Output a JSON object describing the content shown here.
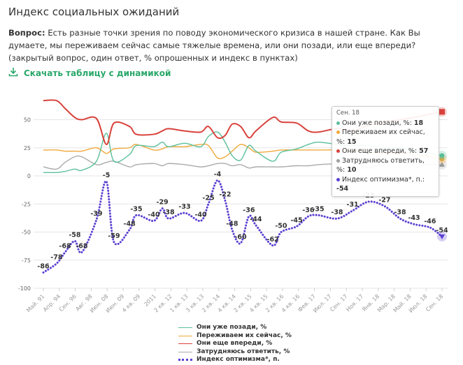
{
  "title": "Индекс социальных ожиданий",
  "question": {
    "label": "Вопрос:",
    "text": " Есть разные точки зрения по поводу экономического кризиса в нашей стране. Как Вы думаете, мы переживаем сейчас самые тяжелые времена, или они позади, или еще впереди? (закрытый вопрос, один ответ, % опрошенных и индекс в пунктах)"
  },
  "download_label": "Скачать таблицу с динамикой",
  "colors": {
    "accent": "#2aa86a"
  },
  "tooltip": {
    "header": "Сен. 18",
    "rows": [
      {
        "label": "Они уже позади, %: ",
        "value": "18",
        "color": "#5bbf9a"
      },
      {
        "label": "Переживаем их сейчас, %: ",
        "value": "15",
        "color": "#f0a93c"
      },
      {
        "label": "Они еще впереди, %: ",
        "value": "57",
        "color": "#d9423c"
      },
      {
        "label": "Затрудняюсь ответить, %: ",
        "value": "10",
        "color": "#9e9e9e"
      },
      {
        "label": "Индекс оптимизма*, п.: ",
        "value": "-54",
        "color": "#5b3fd1"
      }
    ]
  },
  "chart_data": {
    "type": "line",
    "categories": [
      "Май. 91",
      "Апр. 94",
      "Сен. 96",
      "Авг. 98",
      "Июн. 08",
      "Июн. 09",
      "4 кв. 09",
      "2011",
      "2 кв. 12",
      "1 кв. 13",
      "3 кв. 13",
      "2 кв. 14",
      "4 кв. 14",
      "2 кв. 15",
      "4 кв. 15",
      "2 кв. 16",
      "4 кв. 16",
      "Фев. 17",
      "Июл. 17",
      "Сен. 17",
      "Ноя. 17",
      "Янв. 18",
      "Мар. 18",
      "Май. 18",
      "Июл. 18",
      "Сен. 18"
    ],
    "yticks": [
      50,
      25,
      0,
      -25,
      -50,
      -75,
      -100
    ],
    "ylim": [
      -100,
      75
    ],
    "grid": true,
    "legend": "bottom",
    "x": [
      0,
      0.83,
      1.36,
      1.97,
      2.41,
      3.33,
      3.95,
      4.43,
      5.4,
      5.83,
      6.93,
      7.46,
      7.85,
      8.86,
      9.87,
      10.35,
      10.92,
      11.4,
      11.84,
      12.37,
      12.89,
      13.33,
      14.39,
      14.91,
      15.88,
      16.62,
      17.24,
      18.42,
      19.39,
      20.39,
      21.4,
      22.37,
      23.25,
      24.25,
      25
    ],
    "series": [
      {
        "name": "Они уже позади, %",
        "color": "#5bbf9a",
        "style": "solid",
        "values": [
          3,
          3,
          4,
          6,
          5,
          13,
          38,
          13,
          19,
          27,
          26,
          30,
          26,
          29,
          26,
          35,
          39,
          30,
          18,
          14,
          27,
          22,
          13,
          21,
          24,
          28,
          30,
          28,
          27,
          27,
          25,
          25,
          22,
          20,
          18
        ]
      },
      {
        "name": "Переживаем их сейчас, %",
        "color": "#f0a93c",
        "style": "solid",
        "values": [
          23,
          23,
          22,
          22,
          22,
          25,
          20,
          24,
          25,
          28,
          23,
          24,
          26,
          26,
          28,
          27,
          16,
          17,
          22,
          28,
          25,
          21,
          22,
          23,
          23,
          23,
          23,
          23,
          22,
          21,
          20,
          20,
          19,
          17,
          15
        ]
      },
      {
        "name": "Они еще впереди, %",
        "color": "#d9423c",
        "style": "solid",
        "values": [
          67,
          67,
          60,
          52,
          50,
          51,
          28,
          47,
          44,
          37,
          37,
          40,
          42,
          40,
          39,
          44,
          34,
          36,
          46,
          44,
          34,
          40,
          52,
          48,
          47,
          40,
          39,
          42,
          40,
          45,
          48,
          50,
          52,
          55,
          57
        ]
      },
      {
        "name": "Затрудняюсь ответить, %",
        "color": "#aaaaaa",
        "style": "solid",
        "values": [
          8,
          6,
          12,
          17,
          17,
          10,
          12,
          13,
          8,
          10,
          11,
          9,
          11,
          10,
          8,
          9,
          11,
          11,
          9,
          10,
          7,
          8,
          8,
          8,
          9,
          9,
          10,
          11,
          13,
          7,
          12,
          12,
          11,
          10,
          10
        ]
      },
      {
        "name": "Индекс оптимизма*, п.",
        "color": "#5b3fd1",
        "style": "dotted",
        "labels": true,
        "values": [
          -86,
          -78,
          -68,
          -58,
          -68,
          -39,
          -5,
          -59,
          -48,
          -35,
          -40,
          -29,
          -38,
          -33,
          -40,
          -25,
          -4,
          -22,
          -48,
          -60,
          -36,
          -44,
          -62,
          -50,
          -45,
          -36,
          -35,
          -38,
          -31,
          -23,
          -27,
          -38,
          -43,
          -46,
          -54
        ]
      }
    ]
  }
}
